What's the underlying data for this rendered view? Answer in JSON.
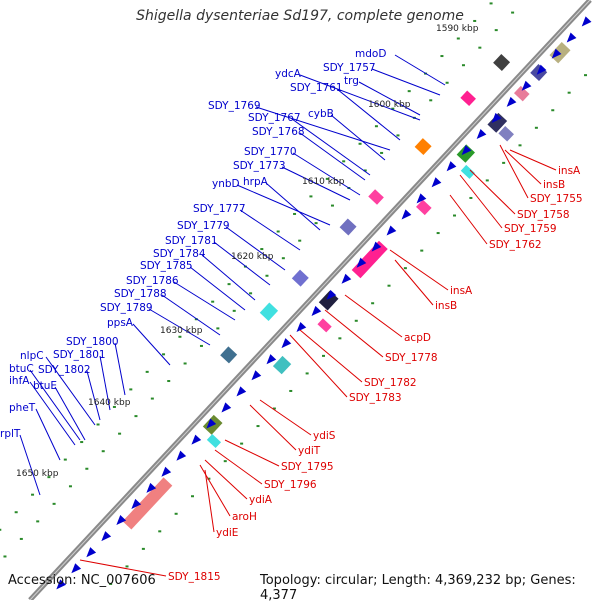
{
  "title": "Shigella dysenteriae Sd197, complete genome",
  "footer": {
    "accession": "Accession: NC_007606",
    "summary": "Topology: circular; Length: 4,369,232 bp; Genes: 4,377"
  },
  "colors": {
    "forward": "#0000cc",
    "reverse": "#dd0000",
    "backbone": "#808080",
    "tick": "#2a8a2a"
  },
  "ticks": [
    "1590 kbp",
    "1600 kbp",
    "1610 kbp",
    "1620 kbp",
    "1630 kbp",
    "1640 kbp",
    "1650 kbp"
  ],
  "labels_forward": [
    "mdoD",
    "SDY_1757",
    "ydcA",
    "SDY_1761",
    "trg",
    "SDY_1769",
    "cybB",
    "SDY_1767",
    "SDY_1768",
    "SDY_1770",
    "SDY_1773",
    "ynbD",
    "hrpA",
    "SDY_1777",
    "SDY_1779",
    "SDY_1781",
    "SDY_1784",
    "SDY_1785",
    "SDY_1786",
    "SDY_1788",
    "SDY_1789",
    "ppsA",
    "SDY_1800",
    "SDY_1801",
    "nlpC",
    "SDY_1802",
    "btuC",
    "ihfA",
    "btuE",
    "pheT",
    "rplT"
  ],
  "labels_reverse": [
    "insA",
    "insB",
    "SDY_1755",
    "SDY_1758",
    "SDY_1759",
    "SDY_1762",
    "insA",
    "insB",
    "acpD",
    "SDY_1778",
    "SDY_1782",
    "SDY_1783",
    "ydiS",
    "ydiT",
    "SDY_1795",
    "SDY_1796",
    "ydiA",
    "aroH",
    "ydiE",
    "SDY_1815"
  ]
}
